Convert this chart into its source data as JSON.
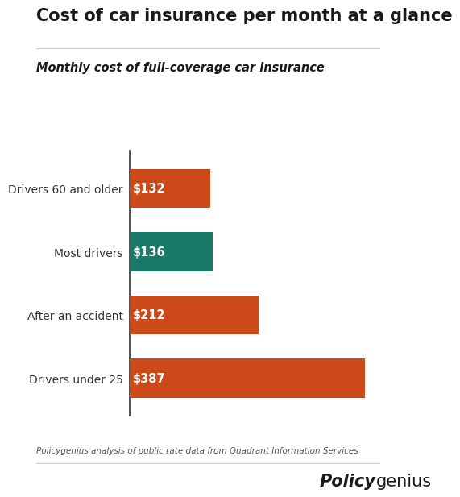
{
  "title": "Cost of car insurance per month at a glance",
  "subtitle": "Monthly cost of full-coverage car insurance",
  "categories": [
    "Drivers 60 and older",
    "Most drivers",
    "After an accident",
    "Drivers under 25"
  ],
  "values": [
    132,
    136,
    212,
    387
  ],
  "labels": [
    "$132",
    "$136",
    "$212",
    "$387"
  ],
  "bar_colors": [
    "#cc4a1a",
    "#1a7a6a",
    "#cc4a1a",
    "#cc4a1a"
  ],
  "background_color": "#ffffff",
  "title_fontsize": 15,
  "subtitle_fontsize": 10.5,
  "footnote": "Policygenius analysis of public rate data from Quadrant Information Services",
  "label_color": "#ffffff",
  "bar_height": 0.62,
  "xlim": [
    0,
    430
  ],
  "grid_color": "#e0e0e0",
  "spine_color": "#333333",
  "category_fontsize": 10,
  "label_fontsize": 10.5
}
